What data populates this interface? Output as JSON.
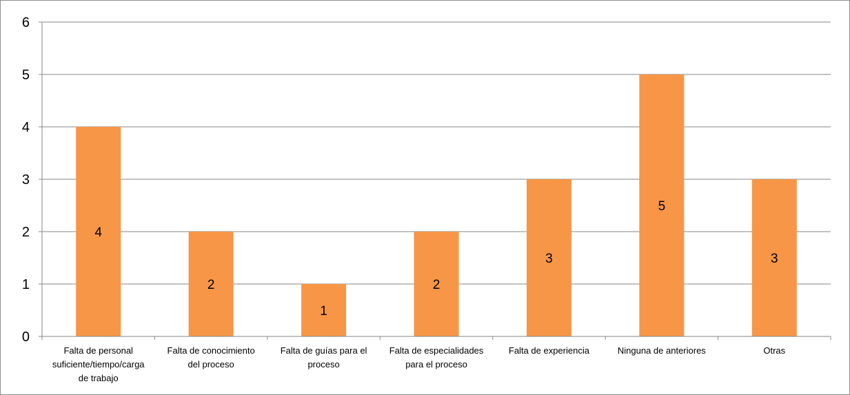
{
  "chart_data": {
    "type": "bar",
    "categories": [
      [
        "Falta de personal",
        "suficiente/tiempo/carga",
        "de trabajo"
      ],
      [
        "Falta de conocimiento",
        "del proceso"
      ],
      [
        "Falta de guías para el",
        "proceso"
      ],
      [
        "Falta de especialidades",
        "para el proceso"
      ],
      [
        "Falta de experiencia"
      ],
      [
        "Ninguna de anteriores"
      ],
      [
        "Otras"
      ]
    ],
    "values": [
      4,
      2,
      1,
      2,
      3,
      5,
      3
    ],
    "data_labels": [
      "4",
      "2",
      "1",
      "2",
      "3",
      "5",
      "3"
    ],
    "y_ticks": [
      "0",
      "1",
      "2",
      "3",
      "4",
      "5",
      "6"
    ],
    "ylim": [
      0,
      6
    ],
    "title": "",
    "xlabel": "",
    "ylabel": "",
    "grid": true,
    "legend": "none",
    "colors": {
      "bar": "#f79646",
      "grid": "#868686",
      "axis": "#868686"
    }
  }
}
